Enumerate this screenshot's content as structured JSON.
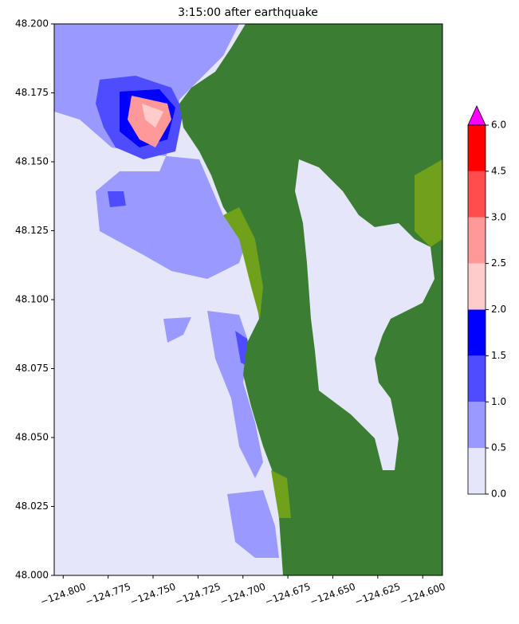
{
  "chart_data": {
    "type": "map",
    "title": "3:15:00 after earthquake",
    "xlim": [
      -124.805,
      -124.589
    ],
    "ylim": [
      48.0,
      48.2
    ],
    "xticks": [
      {
        "value": -124.8,
        "label": "−124.800"
      },
      {
        "value": -124.775,
        "label": "−124.775"
      },
      {
        "value": -124.75,
        "label": "−124.750"
      },
      {
        "value": -124.725,
        "label": "−124.725"
      },
      {
        "value": -124.7,
        "label": "−124.700"
      },
      {
        "value": -124.675,
        "label": "−124.675"
      },
      {
        "value": -124.65,
        "label": "−124.650"
      },
      {
        "value": -124.625,
        "label": "−124.625"
      },
      {
        "value": -124.6,
        "label": "−124.600"
      }
    ],
    "yticks": [
      {
        "value": 48.0,
        "label": "48.000"
      },
      {
        "value": 48.025,
        "label": "48.025"
      },
      {
        "value": 48.05,
        "label": "48.050"
      },
      {
        "value": 48.075,
        "label": "48.075"
      },
      {
        "value": 48.1,
        "label": "48.100"
      },
      {
        "value": 48.125,
        "label": "48.125"
      },
      {
        "value": 48.15,
        "label": "48.150"
      },
      {
        "value": 48.175,
        "label": "48.175"
      },
      {
        "value": 48.2,
        "label": "48.200"
      }
    ],
    "colorbar": {
      "ticks": [
        {
          "value": 0,
          "label": "0.0"
        },
        {
          "value": 0.5,
          "label": "0.5"
        },
        {
          "value": 1,
          "label": "1.0"
        },
        {
          "value": 1.5,
          "label": "1.5"
        },
        {
          "value": 2,
          "label": "2.0"
        },
        {
          "value": 2.5,
          "label": "2.5"
        },
        {
          "value": 3,
          "label": "3.0"
        },
        {
          "value": 4.5,
          "label": "4.5"
        },
        {
          "value": 6,
          "label": "6.0"
        }
      ],
      "colors": [
        "#e6e6fa",
        "#9999ff",
        "#4d4dff",
        "#0000ff",
        "#ffcccc",
        "#ff9999",
        "#ff4d4d",
        "#ff0000"
      ],
      "extend_color": "#ff00ff"
    }
  }
}
